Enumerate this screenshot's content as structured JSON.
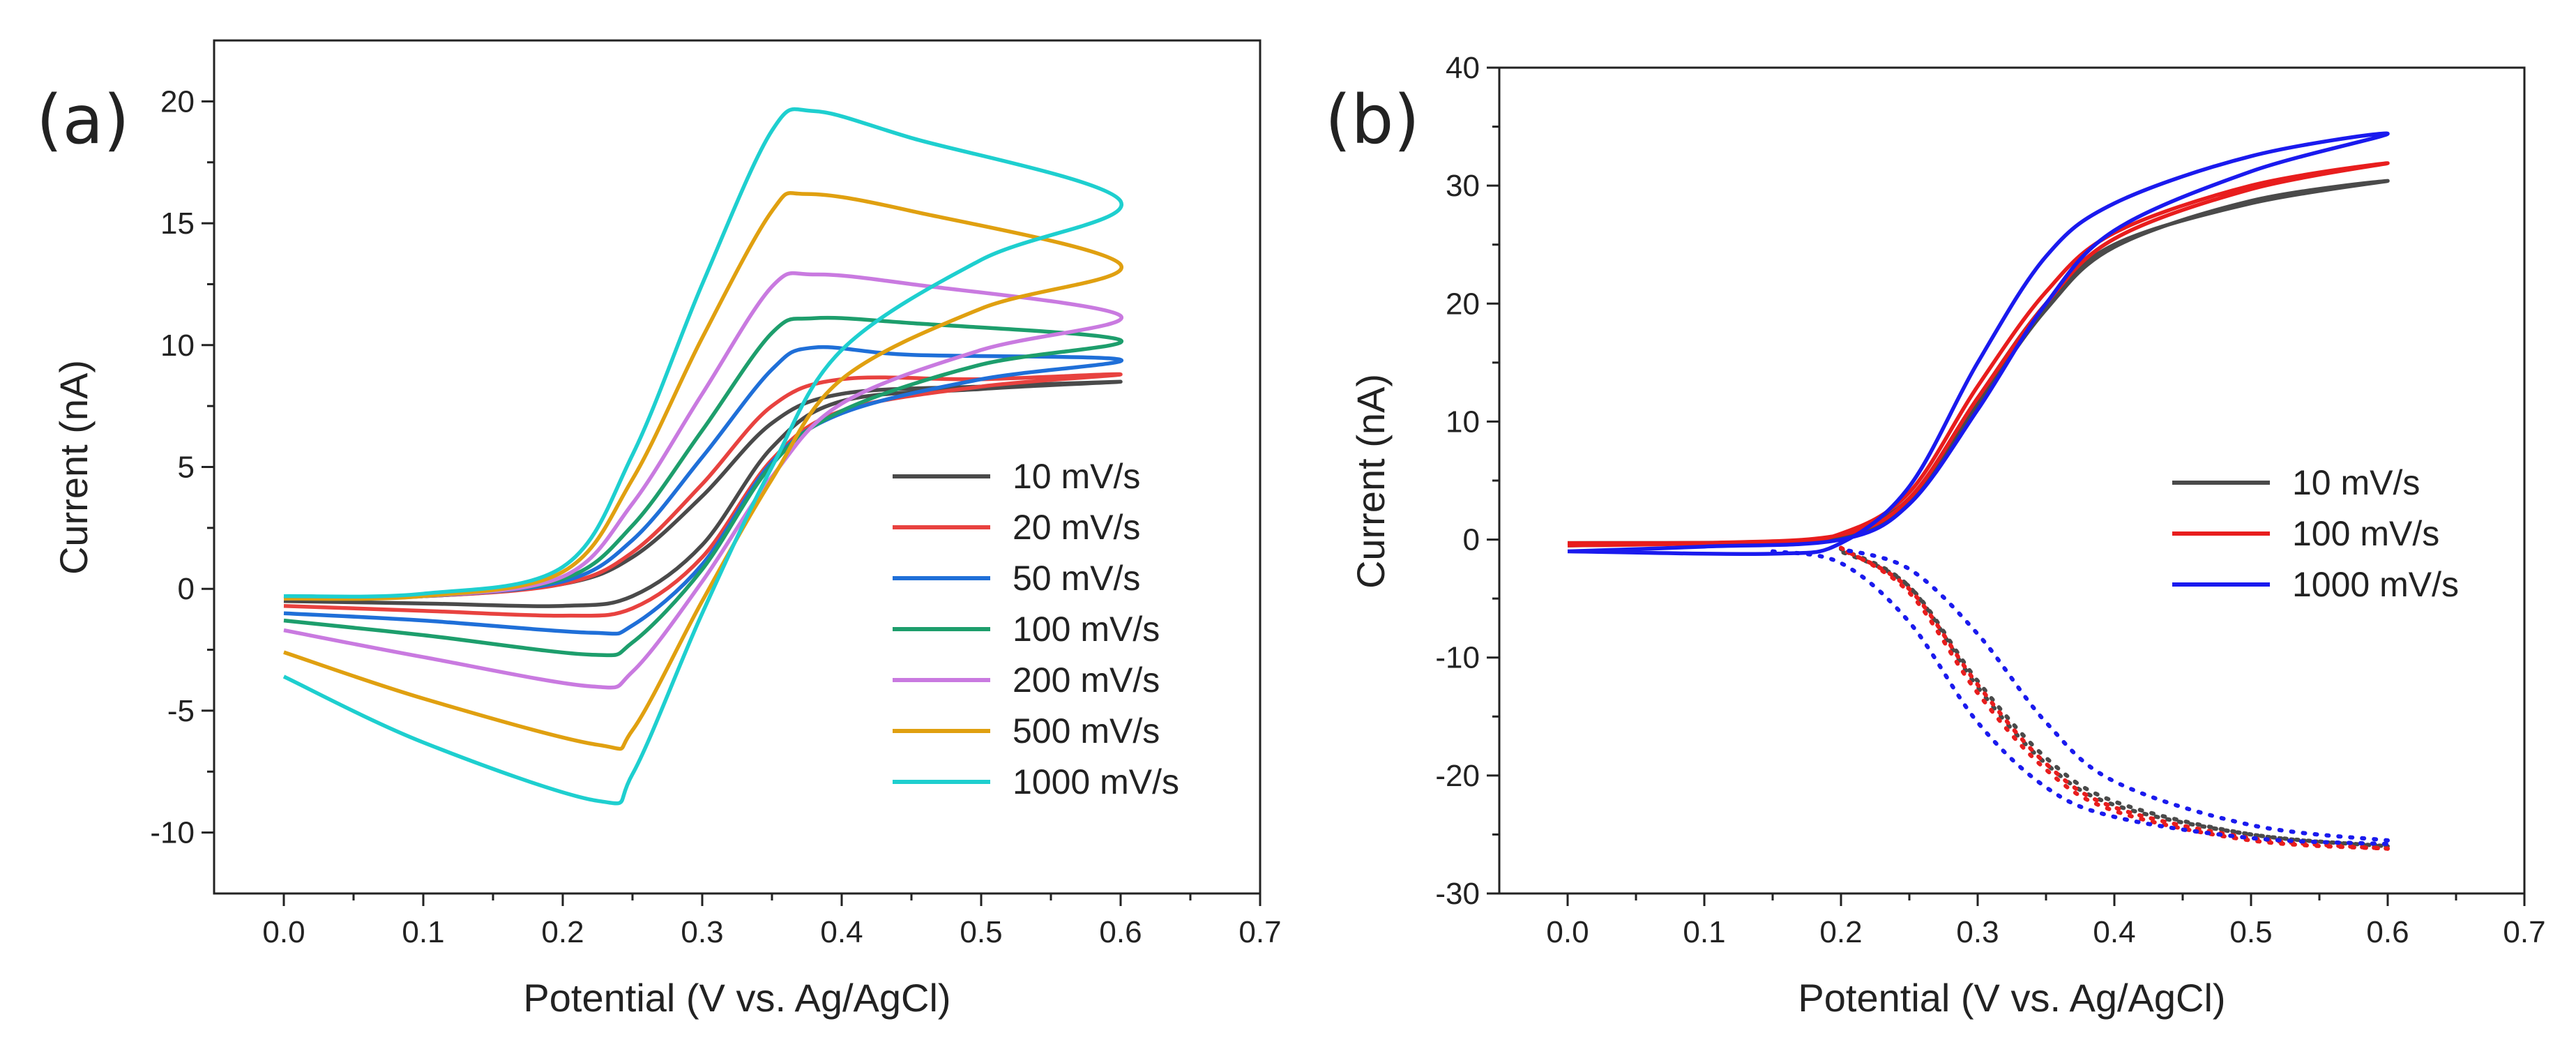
{
  "chart_data": [
    {
      "panel_label": "(a)",
      "type": "line",
      "title": "",
      "xlabel": "Potential (V vs. Ag/AgCl)",
      "ylabel": "Current (nA)",
      "xlim": [
        -0.05,
        0.7
      ],
      "ylim": [
        -12.5,
        22.5
      ],
      "xticks": [
        0.0,
        0.1,
        0.2,
        0.3,
        0.4,
        0.5,
        0.6,
        0.7
      ],
      "yticks": [
        -10,
        -5,
        0,
        5,
        10,
        15,
        20
      ],
      "xtick_labels": [
        "0.0",
        "0.1",
        "0.2",
        "0.3",
        "0.4",
        "0.5",
        "0.6",
        "0.7"
      ],
      "ytick_labels": [
        "-10",
        "-5",
        "0",
        "5",
        "10",
        "15",
        "20"
      ],
      "legend_position": "center-right",
      "series": [
        {
          "name": "10 mV/s",
          "color": "#4a4a4a",
          "forward": [
            [
              0,
              -0.3
            ],
            [
              0.1,
              -0.3
            ],
            [
              0.2,
              0.2
            ],
            [
              0.25,
              1.3
            ],
            [
              0.3,
              3.8
            ],
            [
              0.35,
              6.8
            ],
            [
              0.4,
              8.0
            ],
            [
              0.5,
              8.3
            ],
            [
              0.6,
              8.5
            ]
          ],
          "reverse": [
            [
              0.6,
              8.5
            ],
            [
              0.5,
              8.2
            ],
            [
              0.4,
              7.7
            ],
            [
              0.35,
              5.8
            ],
            [
              0.3,
              1.8
            ],
            [
              0.25,
              -0.3
            ],
            [
              0.2,
              -0.7
            ],
            [
              0.1,
              -0.6
            ],
            [
              0,
              -0.5
            ]
          ]
        },
        {
          "name": "20 mV/s",
          "color": "#e8423f",
          "forward": [
            [
              0,
              -0.3
            ],
            [
              0.1,
              -0.3
            ],
            [
              0.2,
              0.2
            ],
            [
              0.25,
              1.5
            ],
            [
              0.3,
              4.3
            ],
            [
              0.35,
              7.5
            ],
            [
              0.4,
              8.6
            ],
            [
              0.5,
              8.6
            ],
            [
              0.6,
              8.8
            ]
          ],
          "reverse": [
            [
              0.6,
              8.8
            ],
            [
              0.5,
              8.3
            ],
            [
              0.4,
              7.3
            ],
            [
              0.35,
              5.3
            ],
            [
              0.3,
              1.3
            ],
            [
              0.25,
              -0.8
            ],
            [
              0.2,
              -1.1
            ],
            [
              0.1,
              -0.9
            ],
            [
              0,
              -0.7
            ]
          ]
        },
        {
          "name": "50 mV/s",
          "color": "#1f6fd8",
          "forward": [
            [
              0,
              -0.4
            ],
            [
              0.1,
              -0.3
            ],
            [
              0.2,
              0.3
            ],
            [
              0.25,
              2.0
            ],
            [
              0.3,
              5.4
            ],
            [
              0.35,
              9.0
            ],
            [
              0.38,
              9.9
            ],
            [
              0.45,
              9.6
            ],
            [
              0.6,
              9.4
            ]
          ],
          "reverse": [
            [
              0.6,
              9.4
            ],
            [
              0.5,
              8.6
            ],
            [
              0.4,
              7.2
            ],
            [
              0.35,
              5.2
            ],
            [
              0.3,
              1.0
            ],
            [
              0.25,
              -1.5
            ],
            [
              0.22,
              -1.8
            ],
            [
              0.1,
              -1.3
            ],
            [
              0,
              -1.0
            ]
          ]
        },
        {
          "name": "100 mV/s",
          "color": "#1d9e6c",
          "forward": [
            [
              0,
              -0.4
            ],
            [
              0.1,
              -0.3
            ],
            [
              0.2,
              0.4
            ],
            [
              0.25,
              2.6
            ],
            [
              0.3,
              6.5
            ],
            [
              0.35,
              10.5
            ],
            [
              0.38,
              11.1
            ],
            [
              0.45,
              10.9
            ],
            [
              0.6,
              10.2
            ]
          ],
          "reverse": [
            [
              0.6,
              10.2
            ],
            [
              0.5,
              9.2
            ],
            [
              0.4,
              7.3
            ],
            [
              0.35,
              5.1
            ],
            [
              0.3,
              0.8
            ],
            [
              0.25,
              -2.2
            ],
            [
              0.22,
              -2.7
            ],
            [
              0.1,
              -1.9
            ],
            [
              0,
              -1.3
            ]
          ]
        },
        {
          "name": "200 mV/s",
          "color": "#c97ae0",
          "forward": [
            [
              0,
              -0.4
            ],
            [
              0.1,
              -0.3
            ],
            [
              0.2,
              0.5
            ],
            [
              0.25,
              3.5
            ],
            [
              0.3,
              8.0
            ],
            [
              0.35,
              12.4
            ],
            [
              0.38,
              12.9
            ],
            [
              0.45,
              12.5
            ],
            [
              0.6,
              11.2
            ]
          ],
          "reverse": [
            [
              0.6,
              11.2
            ],
            [
              0.5,
              9.8
            ],
            [
              0.4,
              7.6
            ],
            [
              0.35,
              4.6
            ],
            [
              0.3,
              0.3
            ],
            [
              0.25,
              -3.4
            ],
            [
              0.22,
              -4.0
            ],
            [
              0.1,
              -2.8
            ],
            [
              0,
              -1.7
            ]
          ]
        },
        {
          "name": "500 mV/s",
          "color": "#e0a010",
          "forward": [
            [
              0,
              -0.4
            ],
            [
              0.1,
              -0.3
            ],
            [
              0.2,
              0.7
            ],
            [
              0.25,
              4.5
            ],
            [
              0.3,
              10.3
            ],
            [
              0.35,
              15.5
            ],
            [
              0.375,
              16.2
            ],
            [
              0.45,
              15.5
            ],
            [
              0.6,
              13.3
            ]
          ],
          "reverse": [
            [
              0.6,
              13.3
            ],
            [
              0.5,
              11.5
            ],
            [
              0.4,
              8.6
            ],
            [
              0.35,
              4.5
            ],
            [
              0.3,
              -0.5
            ],
            [
              0.25,
              -5.8
            ],
            [
              0.225,
              -6.4
            ],
            [
              0.1,
              -4.5
            ],
            [
              0,
              -2.6
            ]
          ]
        },
        {
          "name": "1000 mV/s",
          "color": "#1ecfcf",
          "forward": [
            [
              0,
              -0.3
            ],
            [
              0.1,
              -0.2
            ],
            [
              0.2,
              0.9
            ],
            [
              0.25,
              5.5
            ],
            [
              0.3,
              12.5
            ],
            [
              0.35,
              18.8
            ],
            [
              0.38,
              19.6
            ],
            [
              0.45,
              18.5
            ],
            [
              0.6,
              15.9
            ]
          ],
          "reverse": [
            [
              0.6,
              15.9
            ],
            [
              0.5,
              13.5
            ],
            [
              0.4,
              9.8
            ],
            [
              0.35,
              5.0
            ],
            [
              0.3,
              -1.0
            ],
            [
              0.25,
              -7.6
            ],
            [
              0.225,
              -8.7
            ],
            [
              0.1,
              -6.3
            ],
            [
              0,
              -3.6
            ]
          ]
        }
      ]
    },
    {
      "panel_label": "(b)",
      "type": "line",
      "title": "",
      "xlabel": "Potential (V vs. Ag/AgCl)",
      "ylabel": "Current (nA)",
      "xlim": [
        -0.05,
        0.7
      ],
      "ylim": [
        -30,
        40
      ],
      "xticks": [
        0.0,
        0.1,
        0.2,
        0.3,
        0.4,
        0.5,
        0.6,
        0.7
      ],
      "yticks": [
        -30,
        -20,
        -10,
        0,
        10,
        20,
        30,
        40
      ],
      "xtick_labels": [
        "0.0",
        "0.1",
        "0.2",
        "0.3",
        "0.4",
        "0.5",
        "0.6",
        "0.7"
      ],
      "ytick_labels": [
        "-30",
        "-20",
        "-10",
        "0",
        "10",
        "20",
        "30",
        "40"
      ],
      "legend_position": "center-right",
      "series": [
        {
          "name": "10 mV/s",
          "color": "#4a4a4a",
          "solid_forward": [
            [
              0,
              -0.3
            ],
            [
              0.15,
              -0.2
            ],
            [
              0.2,
              0.4
            ],
            [
              0.25,
              3.5
            ],
            [
              0.3,
              12
            ],
            [
              0.35,
              20
            ],
            [
              0.4,
              25
            ],
            [
              0.5,
              28.5
            ],
            [
              0.6,
              30.4
            ]
          ],
          "solid_reverse": [
            [
              0.6,
              30.4
            ],
            [
              0.5,
              28.7
            ],
            [
              0.4,
              24.8
            ],
            [
              0.35,
              19.5
            ],
            [
              0.3,
              11.5
            ],
            [
              0.25,
              3.3
            ],
            [
              0.2,
              0.3
            ],
            [
              0.1,
              -0.3
            ],
            [
              0,
              -0.5
            ]
          ],
          "dotted_forward": [
            [
              0.2,
              -0.8
            ],
            [
              0.25,
              -4
            ],
            [
              0.3,
              -12.5
            ],
            [
              0.35,
              -19
            ],
            [
              0.4,
              -22.5
            ],
            [
              0.5,
              -25
            ],
            [
              0.6,
              -26
            ]
          ],
          "dotted_reverse": [
            [
              0.6,
              -26
            ],
            [
              0.5,
              -25
            ],
            [
              0.4,
              -22.2
            ],
            [
              0.35,
              -18.5
            ],
            [
              0.3,
              -12
            ],
            [
              0.25,
              -4
            ],
            [
              0.2,
              -1
            ]
          ]
        },
        {
          "name": "100 mV/s",
          "color": "#e81d1d",
          "solid_forward": [
            [
              0,
              -0.3
            ],
            [
              0.15,
              -0.2
            ],
            [
              0.2,
              0.5
            ],
            [
              0.25,
              4
            ],
            [
              0.3,
              13
            ],
            [
              0.35,
              21
            ],
            [
              0.4,
              26
            ],
            [
              0.5,
              30
            ],
            [
              0.6,
              31.9
            ]
          ],
          "solid_reverse": [
            [
              0.6,
              31.9
            ],
            [
              0.5,
              29.7
            ],
            [
              0.4,
              25.5
            ],
            [
              0.35,
              20
            ],
            [
              0.3,
              12
            ],
            [
              0.25,
              3.5
            ],
            [
              0.2,
              0.4
            ],
            [
              0.1,
              -0.3
            ],
            [
              0,
              -0.5
            ]
          ],
          "dotted_forward": [
            [
              0.2,
              -0.7
            ],
            [
              0.25,
              -4.5
            ],
            [
              0.3,
              -13
            ],
            [
              0.35,
              -19.5
            ],
            [
              0.4,
              -23
            ],
            [
              0.5,
              -25.5
            ],
            [
              0.6,
              -26.2
            ]
          ],
          "dotted_reverse": [
            [
              0.6,
              -26.2
            ],
            [
              0.5,
              -25.3
            ],
            [
              0.4,
              -22.7
            ],
            [
              0.35,
              -19
            ],
            [
              0.3,
              -12.3
            ],
            [
              0.25,
              -4.2
            ],
            [
              0.2,
              -0.8
            ]
          ]
        },
        {
          "name": "1000 mV/s",
          "color": "#1a1aee",
          "solid_forward": [
            [
              0,
              -1.0
            ],
            [
              0.15,
              -1.2
            ],
            [
              0.2,
              -0.3
            ],
            [
              0.25,
              4.5
            ],
            [
              0.3,
              15
            ],
            [
              0.35,
              24
            ],
            [
              0.4,
              28.5
            ],
            [
              0.5,
              32.5
            ],
            [
              0.6,
              34.4
            ]
          ],
          "solid_reverse": [
            [
              0.6,
              34.4
            ],
            [
              0.5,
              31.2
            ],
            [
              0.4,
              26.2
            ],
            [
              0.35,
              20
            ],
            [
              0.3,
              11
            ],
            [
              0.25,
              3
            ],
            [
              0.2,
              0
            ],
            [
              0.1,
              -0.6
            ],
            [
              0,
              -1.0
            ]
          ],
          "dotted_forward": [
            [
              0.15,
              -1.0
            ],
            [
              0.2,
              -2
            ],
            [
              0.25,
              -7
            ],
            [
              0.3,
              -15.5
            ],
            [
              0.35,
              -21
            ],
            [
              0.4,
              -23.5
            ],
            [
              0.5,
              -25.3
            ],
            [
              0.6,
              -25.8
            ]
          ],
          "dotted_reverse": [
            [
              0.6,
              -25.5
            ],
            [
              0.5,
              -24.2
            ],
            [
              0.4,
              -20.5
            ],
            [
              0.35,
              -15.5
            ],
            [
              0.3,
              -8
            ],
            [
              0.25,
              -2.5
            ],
            [
              0.2,
              -0.8
            ]
          ]
        }
      ]
    }
  ]
}
